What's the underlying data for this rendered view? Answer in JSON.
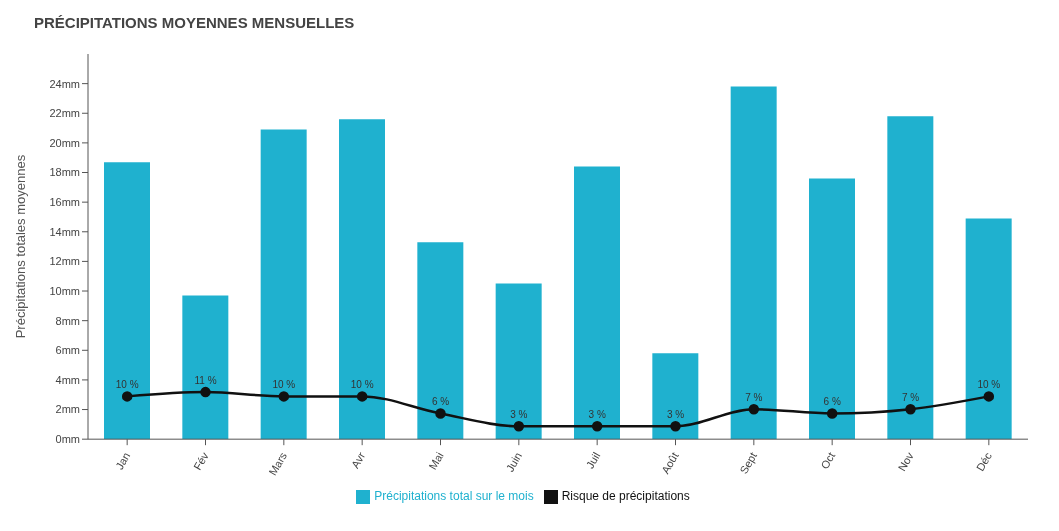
{
  "chart_data": {
    "type": "bar",
    "title": "PRÉCIPITATIONS MOYENNES MENSUELLES",
    "ylabel": "Précipitations totales moyennes",
    "categories": [
      "Jan",
      "Fév",
      "Mars",
      "Avr",
      "Mai",
      "Juin",
      "Juil",
      "Août",
      "Sept",
      "Oct",
      "Nov",
      "Déc"
    ],
    "series": [
      {
        "name": "Précipitations total sur le mois",
        "color": "#1fb1cf",
        "values": [
          18.7,
          9.7,
          20.9,
          21.6,
          13.3,
          10.5,
          18.4,
          5.8,
          23.8,
          17.6,
          21.8,
          14.9
        ]
      },
      {
        "name": "Risque de précipitations",
        "type": "line",
        "color": "#111111",
        "axis": "y2",
        "values": [
          10,
          11,
          10,
          10,
          6,
          3,
          3,
          3,
          7,
          6,
          7,
          10
        ],
        "value_labels": [
          "10 %",
          "11 %",
          "10 %",
          "10 %",
          "6 %",
          "3 %",
          "3 %",
          "3 %",
          "7 %",
          "6 %",
          "7 %",
          "10 %"
        ]
      }
    ],
    "ylim": [
      0,
      26
    ],
    "y2lim": [
      0,
      90
    ],
    "yticks": [
      {
        "value": 0,
        "label": "0mm"
      },
      {
        "value": 2,
        "label": "2mm"
      },
      {
        "value": 4,
        "label": "4mm"
      },
      {
        "value": 6,
        "label": "6mm"
      },
      {
        "value": 8,
        "label": "8mm"
      },
      {
        "value": 10,
        "label": "10mm"
      },
      {
        "value": 12,
        "label": "12mm"
      },
      {
        "value": 14,
        "label": "14mm"
      },
      {
        "value": 16,
        "label": "16mm"
      },
      {
        "value": 18,
        "label": "18mm"
      },
      {
        "value": 20,
        "label": "20mm"
      },
      {
        "value": 22,
        "label": "22mm"
      },
      {
        "value": 24,
        "label": "24mm"
      }
    ],
    "grid": false,
    "legend": "bottom",
    "marker": "circle",
    "line_style": "solid"
  }
}
